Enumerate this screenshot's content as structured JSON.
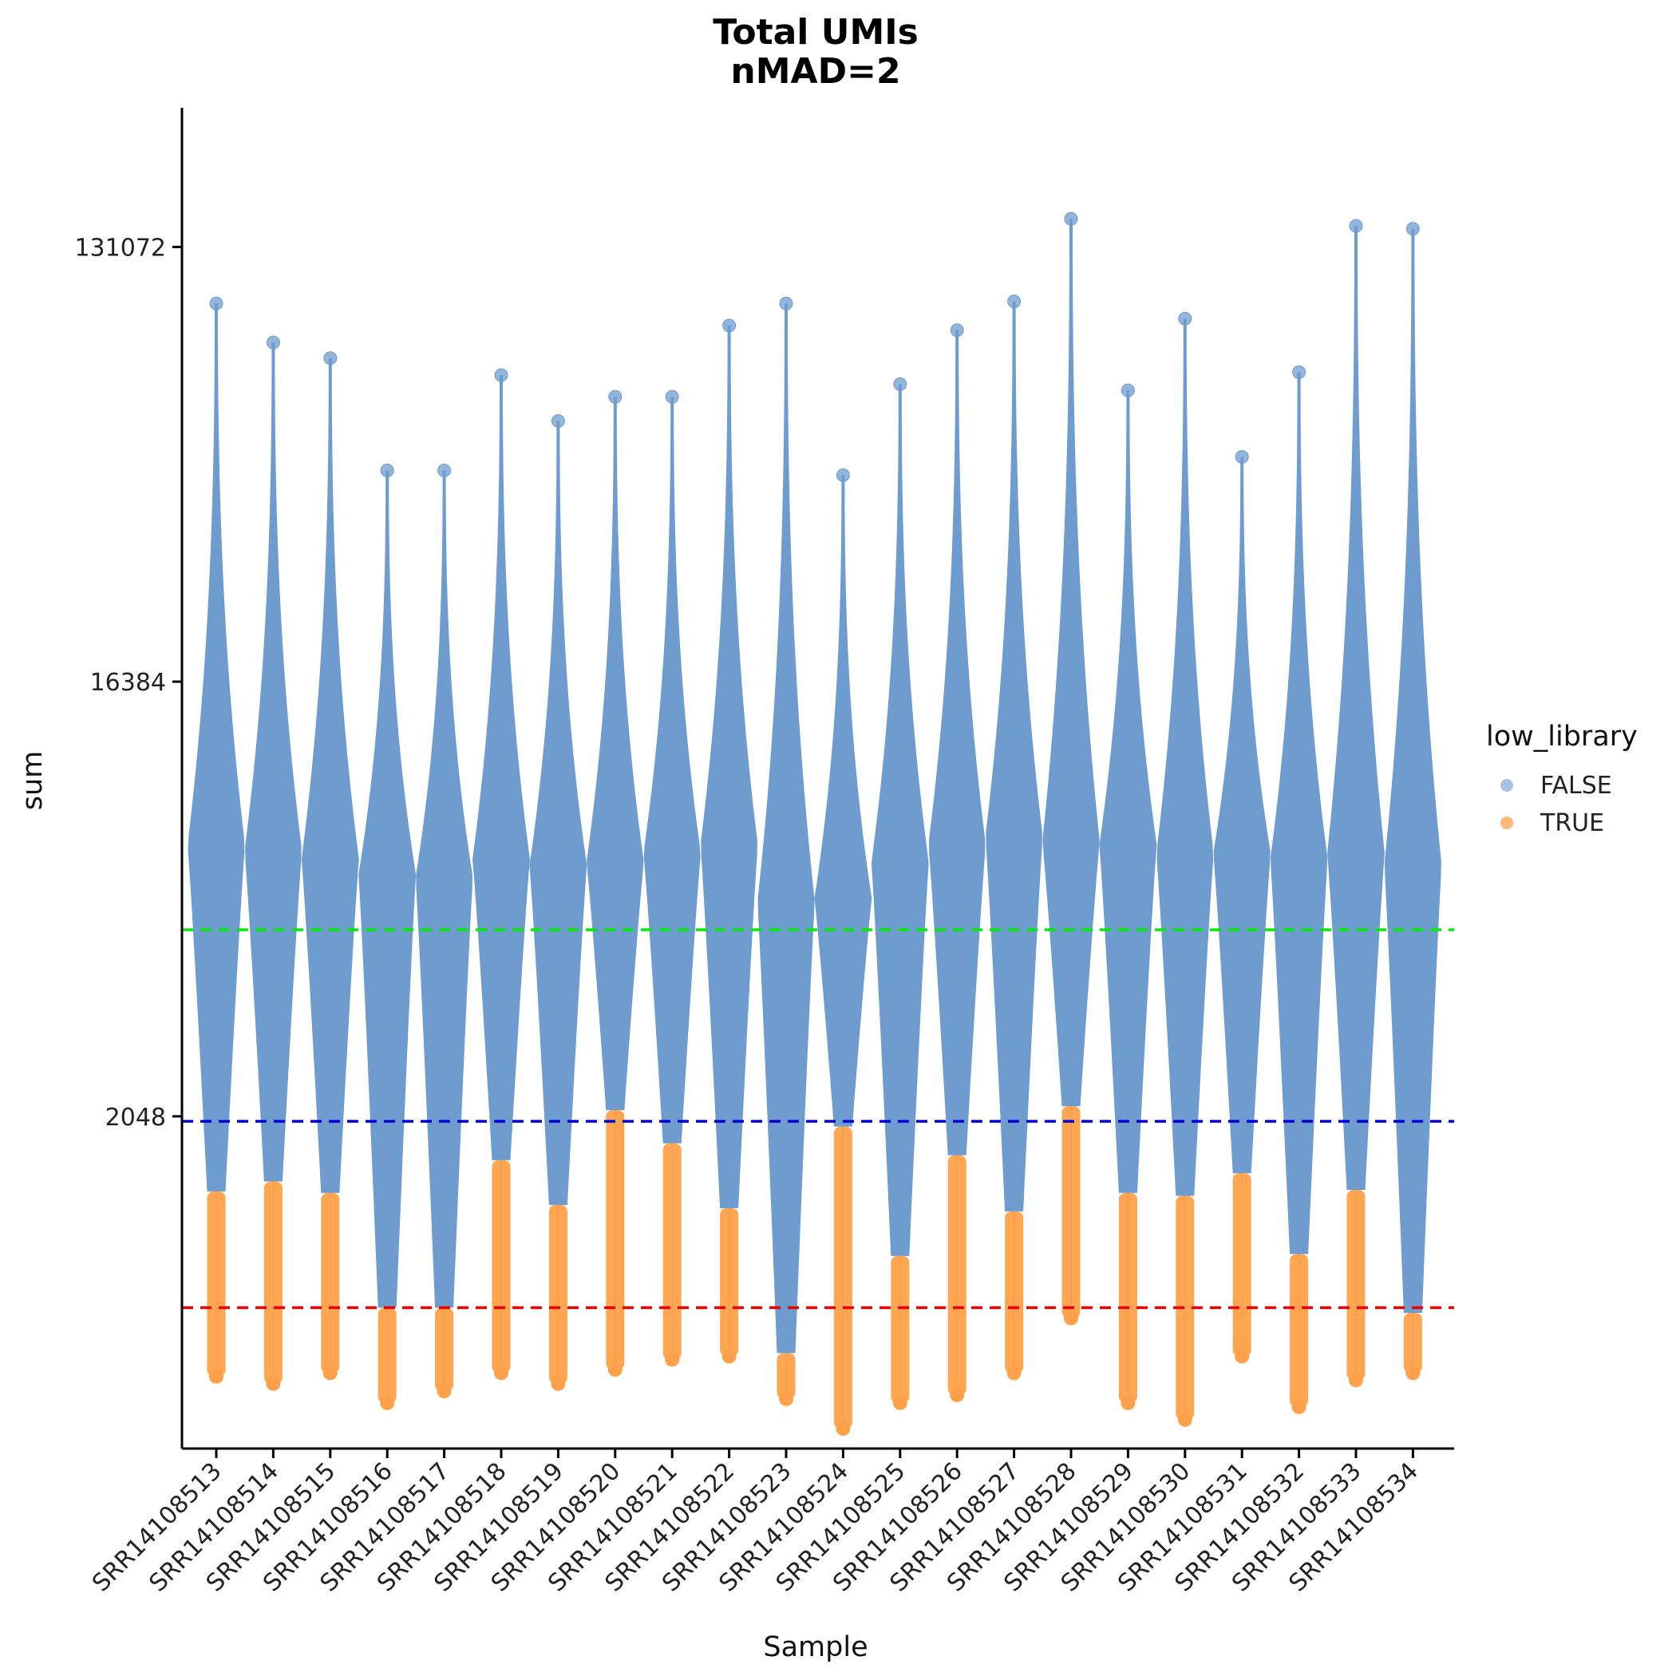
{
  "chart_data": {
    "type": "violin",
    "title": "Total UMIs",
    "subtitle": "nMAD=2",
    "xlabel": "Sample",
    "ylabel": "sum",
    "y_scale": "log2",
    "y_ticks": [
      2048,
      16384,
      131072
    ],
    "y_tick_labels": [
      "2048",
      "16384",
      "131072"
    ],
    "ylim": [
      380,
      260000
    ],
    "grid": false,
    "legend": {
      "title": "low_library",
      "position": "right",
      "entries": [
        {
          "label": "FALSE",
          "color": "#6f9ccf"
        },
        {
          "label": "TRUE",
          "color": "#ffa14a"
        }
      ]
    },
    "thresholds": [
      {
        "value": 5000,
        "color": "#00ee00",
        "style": "dashed"
      },
      {
        "value": 2000,
        "color": "#0000dd",
        "style": "dashed"
      },
      {
        "value": 820,
        "color": "#ee0000",
        "style": "dashed"
      }
    ],
    "categories": [
      "SRR14108513",
      "SRR14108514",
      "SRR14108515",
      "SRR14108516",
      "SRR14108517",
      "SRR14108518",
      "SRR14108519",
      "SRR14108520",
      "SRR14108521",
      "SRR14108522",
      "SRR14108523",
      "SRR14108524",
      "SRR14108525",
      "SRR14108526",
      "SRR14108527",
      "SRR14108528",
      "SRR14108529",
      "SRR14108530",
      "SRR14108531",
      "SRR14108532",
      "SRR14108533",
      "SRR14108534"
    ],
    "series": [
      {
        "sample": "SRR14108513",
        "max": 100000,
        "min": 590,
        "median": 7500,
        "low_threshold": 1430
      },
      {
        "sample": "SRR14108514",
        "max": 83000,
        "min": 570,
        "median": 7300,
        "low_threshold": 1500
      },
      {
        "sample": "SRR14108515",
        "max": 77000,
        "min": 600,
        "median": 7000,
        "low_threshold": 1420
      },
      {
        "sample": "SRR14108516",
        "max": 45000,
        "min": 520,
        "median": 6500,
        "low_threshold": 820
      },
      {
        "sample": "SRR14108517",
        "max": 45000,
        "min": 550,
        "median": 6400,
        "low_threshold": 820
      },
      {
        "sample": "SRR14108518",
        "max": 71000,
        "min": 600,
        "median": 7000,
        "low_threshold": 1660
      },
      {
        "sample": "SRR14108519",
        "max": 57000,
        "min": 570,
        "median": 6800,
        "low_threshold": 1340
      },
      {
        "sample": "SRR14108520",
        "max": 64000,
        "min": 610,
        "median": 6900,
        "low_threshold": 2110
      },
      {
        "sample": "SRR14108521",
        "max": 64000,
        "min": 640,
        "median": 7200,
        "low_threshold": 1800
      },
      {
        "sample": "SRR14108522",
        "max": 90000,
        "min": 650,
        "median": 7500,
        "low_threshold": 1320
      },
      {
        "sample": "SRR14108523",
        "max": 100000,
        "min": 530,
        "median": 5700,
        "low_threshold": 660
      },
      {
        "sample": "SRR14108524",
        "max": 44000,
        "min": 460,
        "median": 5800,
        "low_threshold": 1950
      },
      {
        "sample": "SRR14108525",
        "max": 68000,
        "min": 520,
        "median": 6900,
        "low_threshold": 1050
      },
      {
        "sample": "SRR14108526",
        "max": 88000,
        "min": 540,
        "median": 7500,
        "low_threshold": 1700
      },
      {
        "sample": "SRR14108527",
        "max": 101000,
        "min": 600,
        "median": 7800,
        "low_threshold": 1300
      },
      {
        "sample": "SRR14108528",
        "max": 150000,
        "min": 780,
        "median": 7600,
        "low_threshold": 2150
      },
      {
        "sample": "SRR14108529",
        "max": 66000,
        "min": 520,
        "median": 7500,
        "low_threshold": 1420
      },
      {
        "sample": "SRR14108530",
        "max": 93000,
        "min": 480,
        "median": 7200,
        "low_threshold": 1400
      },
      {
        "sample": "SRR14108531",
        "max": 48000,
        "min": 650,
        "median": 7200,
        "low_threshold": 1560
      },
      {
        "sample": "SRR14108532",
        "max": 72000,
        "min": 510,
        "median": 7000,
        "low_threshold": 1060
      },
      {
        "sample": "SRR14108533",
        "max": 145000,
        "min": 580,
        "median": 7200,
        "low_threshold": 1440
      },
      {
        "sample": "SRR14108534",
        "max": 143000,
        "min": 600,
        "median": 6800,
        "low_threshold": 800
      }
    ]
  }
}
